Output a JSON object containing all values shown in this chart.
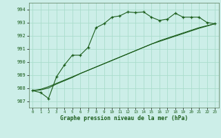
{
  "bg_color": "#cceee8",
  "grid_color": "#aaddcc",
  "line_color": "#1a5c1a",
  "xlabel": "Graphe pression niveau de la mer (hPa)",
  "xlim": [
    -0.5,
    23.5
  ],
  "ylim": [
    986.5,
    994.5
  ],
  "yticks": [
    987,
    988,
    989,
    990,
    991,
    992,
    993,
    994
  ],
  "xticks": [
    0,
    1,
    2,
    3,
    4,
    5,
    6,
    7,
    8,
    9,
    10,
    11,
    12,
    13,
    14,
    15,
    16,
    17,
    18,
    19,
    20,
    21,
    22,
    23
  ],
  "line1_x": [
    0,
    1,
    2,
    3,
    4,
    5,
    6,
    7,
    8,
    9,
    10,
    11,
    12,
    13,
    14,
    15,
    16,
    17,
    18,
    19,
    20,
    21,
    22,
    23
  ],
  "line1_y": [
    987.8,
    987.65,
    987.2,
    988.85,
    989.75,
    990.5,
    990.5,
    991.1,
    992.6,
    992.9,
    993.4,
    993.5,
    993.8,
    993.75,
    993.8,
    993.4,
    993.15,
    993.25,
    993.7,
    993.4,
    993.4,
    993.4,
    993.0,
    992.9
  ],
  "line2_x": [
    0,
    1,
    2,
    3,
    4,
    5,
    6,
    7,
    8,
    9,
    10,
    11,
    12,
    13,
    14,
    15,
    16,
    17,
    18,
    19,
    20,
    21,
    22,
    23
  ],
  "line2_y": [
    987.8,
    987.85,
    988.0,
    988.3,
    988.55,
    988.8,
    989.1,
    989.35,
    989.6,
    989.85,
    990.1,
    990.35,
    990.6,
    990.85,
    991.1,
    991.35,
    991.6,
    991.8,
    992.0,
    992.2,
    992.4,
    992.6,
    992.75,
    992.9
  ],
  "line3_x": [
    0,
    1,
    2,
    3,
    4,
    5,
    6,
    7,
    8,
    9,
    10,
    11,
    12,
    13,
    14,
    15,
    16,
    17,
    18,
    19,
    20,
    21,
    22,
    23
  ],
  "line3_y": [
    987.8,
    987.9,
    988.1,
    988.35,
    988.6,
    988.85,
    989.1,
    989.35,
    989.6,
    989.85,
    990.1,
    990.35,
    990.6,
    990.85,
    991.1,
    991.35,
    991.55,
    991.75,
    991.95,
    992.15,
    992.35,
    992.55,
    992.72,
    992.9
  ]
}
